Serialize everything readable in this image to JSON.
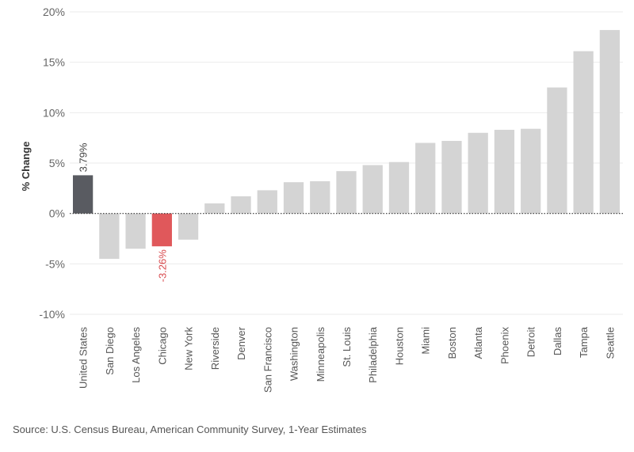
{
  "chart_data": {
    "type": "bar",
    "ylabel": "% Change",
    "ylim": [
      -10,
      20
    ],
    "yticks": [
      -10,
      -5,
      0,
      5,
      10,
      15,
      20
    ],
    "ytick_labels": [
      "-10%",
      "-5%",
      "0%",
      "5%",
      "10%",
      "15%",
      "20%"
    ],
    "grid": "horizontal",
    "categories": [
      "United States",
      "San Diego",
      "Los Angeles",
      "Chicago",
      "New York",
      "Riverside",
      "Denver",
      "San Francisco",
      "Washington",
      "Minneapolis",
      "St. Louis",
      "Philadelphia",
      "Houston",
      "Miami",
      "Boston",
      "Atlanta",
      "Phoenix",
      "Detroit",
      "Dallas",
      "Tampa",
      "Seattle"
    ],
    "values": [
      3.79,
      -4.5,
      -3.5,
      -3.26,
      -2.6,
      1.0,
      1.7,
      2.3,
      3.1,
      3.2,
      4.2,
      4.8,
      5.1,
      7.0,
      7.2,
      8.0,
      8.3,
      8.4,
      12.5,
      16.1,
      18.2
    ],
    "data_labels": [
      {
        "index": 0,
        "text": "3.79%"
      },
      {
        "index": 3,
        "text": "-3.26%"
      }
    ],
    "colors": {
      "default": "#d4d4d4",
      "highlight_national": "#595b61",
      "highlight_negative": "#e0585b",
      "label_national": "#444444",
      "label_negative": "#d84a4e"
    },
    "highlights": {
      "0": "highlight_national",
      "3": "highlight_negative"
    }
  },
  "footer": {
    "source": "Source: U.S. Census Bureau, American Community Survey, 1-Year Estimates"
  }
}
